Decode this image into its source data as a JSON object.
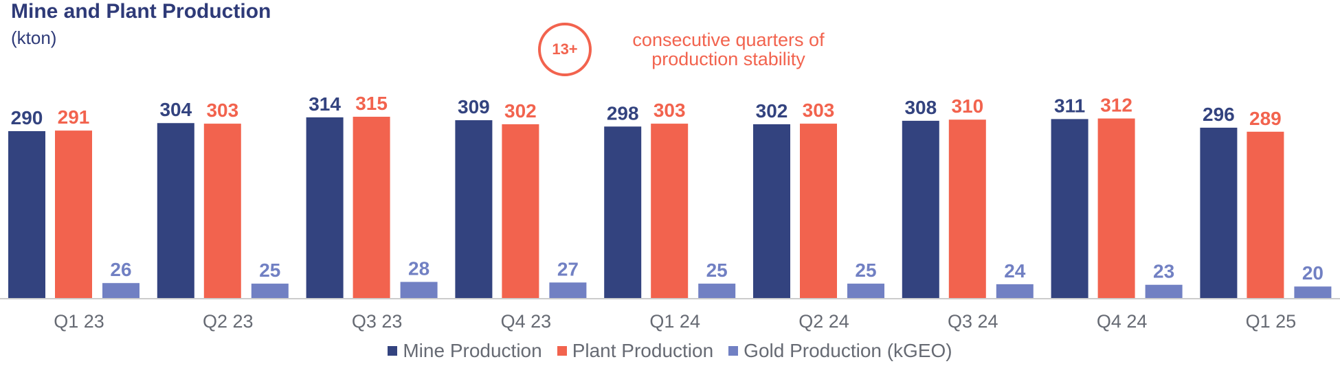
{
  "header": {
    "title": "Mine and Plant Production",
    "subtitle": "(kton)"
  },
  "callout": {
    "badge": "13+",
    "line1": "consecutive quarters of",
    "line2": "production stability"
  },
  "colors": {
    "mine": "#33437f",
    "plant": "#f2634e",
    "gold": "#7180c3",
    "axis": "#cccccc",
    "tick": "#666a73"
  },
  "chart_data": {
    "type": "bar",
    "title": "Mine and Plant Production",
    "subtitle": "(kton)",
    "categories": [
      "Q1 23",
      "Q2 23",
      "Q3 23",
      "Q4 23",
      "Q1 24",
      "Q2 24",
      "Q3 24",
      "Q4 24",
      "Q1 25"
    ],
    "series": [
      {
        "name": "Mine Production",
        "values": [
          290,
          304,
          314,
          309,
          298,
          302,
          308,
          311,
          296
        ]
      },
      {
        "name": "Plant Production",
        "values": [
          291,
          303,
          315,
          302,
          303,
          303,
          310,
          312,
          289
        ]
      },
      {
        "name": "Gold Production (kGEO)",
        "values": [
          26,
          25,
          28,
          27,
          25,
          25,
          24,
          23,
          20
        ]
      }
    ],
    "data_labels": true,
    "legend_position": "bottom",
    "grid": false
  }
}
